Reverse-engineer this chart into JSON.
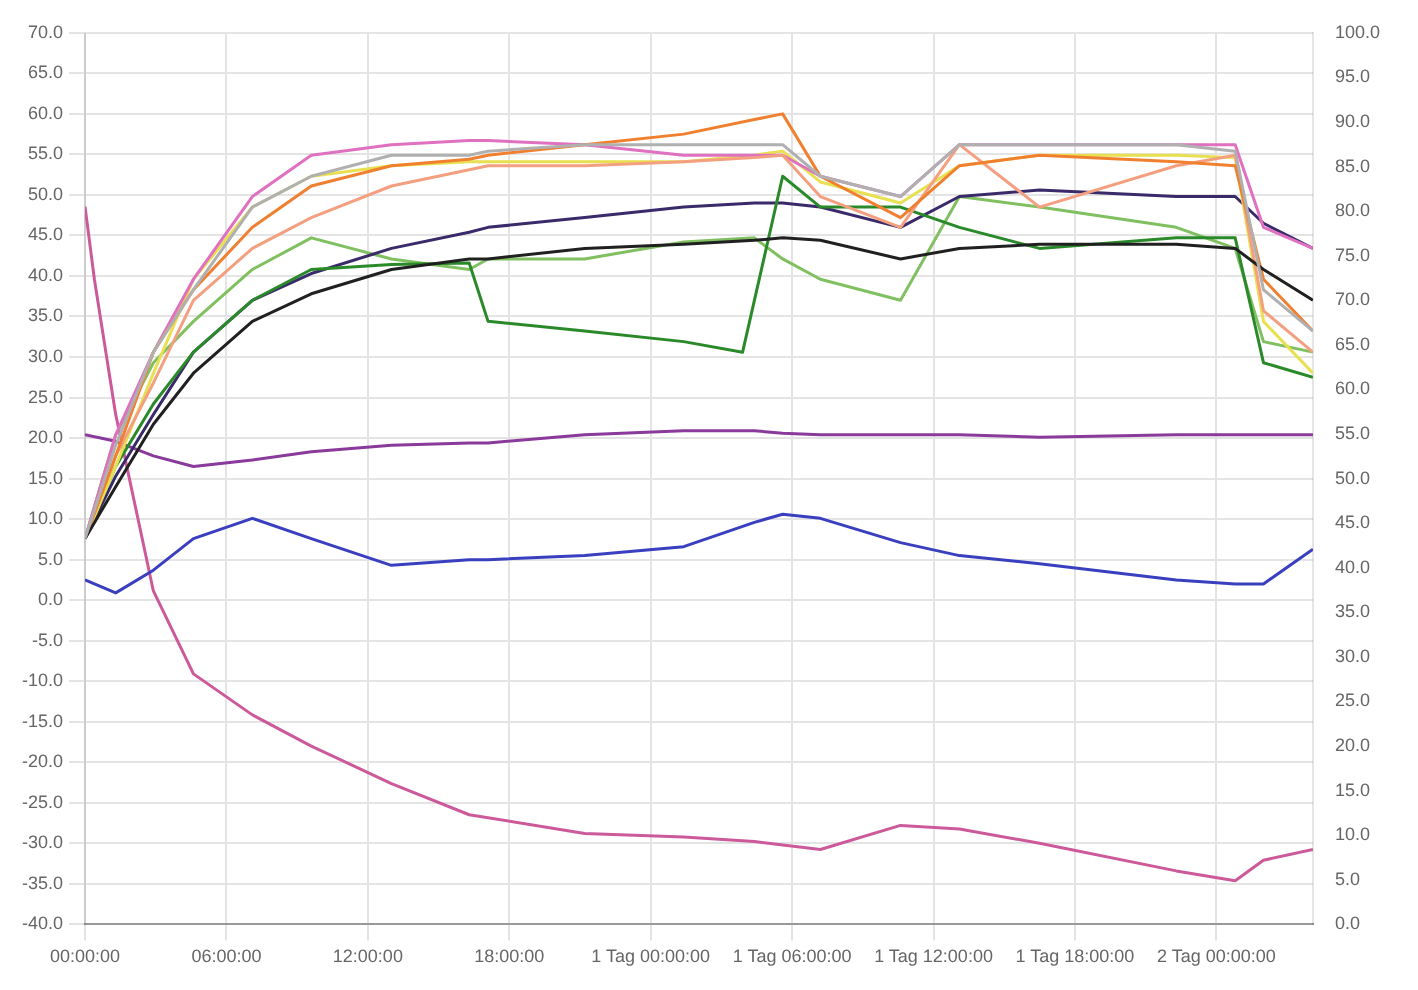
{
  "chart_data": {
    "type": "line",
    "x": [
      0,
      1.3,
      2.9,
      4.6,
      7.1,
      9.6,
      13.0,
      16.3,
      17.1,
      21.2,
      25.4,
      28.4,
      29.6,
      31.2,
      34.6,
      37.1,
      40.5,
      46.3,
      48.8,
      50.0,
      52.1
    ],
    "series": [
      {
        "color": "#3a3fc0",
        "values": [
          2.5,
          0.9,
          3.7,
          7.6,
          10.1,
          7.6,
          4.3,
          5.0,
          5.0,
          5.5,
          6.6,
          9.6,
          10.6,
          10.1,
          7.1,
          5.5,
          4.5,
          2.5,
          2.0,
          2.0,
          6.3
        ]
      },
      {
        "color": "#b0b0b0",
        "values": [
          7.6,
          19.1,
          30.6,
          38.3,
          48.5,
          52.3,
          54.9,
          54.9,
          55.4,
          56.2,
          56.2,
          56.2,
          56.2,
          52.3,
          49.8,
          56.2,
          56.2,
          56.2,
          55.4,
          38.3,
          33.2
        ]
      },
      {
        "color": "#202020",
        "values": [
          7.6,
          14.0,
          21.7,
          28.0,
          34.4,
          37.8,
          40.8,
          42.1,
          42.1,
          43.4,
          43.9,
          44.4,
          44.7,
          44.4,
          42.1,
          43.4,
          43.9,
          43.9,
          43.4,
          40.8,
          37.0
        ]
      },
      {
        "color": "#f08030",
        "values": [
          7.6,
          17.8,
          30.6,
          38.3,
          46.0,
          51.1,
          53.6,
          54.4,
          54.9,
          56.2,
          57.5,
          59.3,
          60.0,
          52.3,
          47.2,
          53.6,
          54.9,
          54.1,
          53.6,
          39.6,
          33.2
        ]
      },
      {
        "color": "#f4a080",
        "values": [
          7.6,
          17.8,
          26.8,
          37.0,
          43.4,
          47.2,
          51.1,
          53.1,
          53.6,
          53.6,
          54.1,
          54.6,
          54.9,
          49.8,
          46.0,
          56.2,
          48.5,
          53.6,
          54.9,
          35.7,
          30.6
        ]
      },
      {
        "color": "#e070c0",
        "values": [
          7.6,
          20.4,
          30.6,
          39.6,
          49.8,
          54.9,
          56.2,
          56.7,
          56.7,
          56.2,
          54.9,
          54.9,
          54.9,
          52.3,
          49.8,
          56.2,
          56.2,
          56.2,
          56.2,
          46.0,
          43.4
        ]
      },
      {
        "color": "#e8e050",
        "values": [
          7.6,
          16.5,
          28.0,
          39.6,
          48.5,
          52.3,
          53.6,
          54.1,
          54.1,
          54.1,
          54.1,
          54.9,
          55.4,
          51.6,
          49.0,
          53.6,
          54.9,
          54.9,
          54.6,
          34.4,
          28.0
        ]
      },
      {
        "color": "#2a8a2a",
        "x": [
          0,
          1.3,
          2.9,
          4.6,
          7.1,
          9.6,
          13.0,
          16.3,
          17.1,
          21.2,
          25.4,
          27.9,
          29.6,
          31.2,
          34.6,
          37.1,
          40.5,
          46.3,
          48.8,
          50.0,
          52.1
        ],
        "values": [
          7.6,
          16.5,
          24.2,
          30.6,
          37.0,
          40.8,
          41.4,
          41.6,
          34.4,
          33.2,
          31.9,
          30.6,
          52.3,
          48.5,
          48.5,
          46.0,
          43.4,
          44.7,
          44.7,
          29.3,
          27.5
        ]
      },
      {
        "color": "#3a2a6a",
        "values": [
          7.6,
          15.3,
          22.9,
          30.6,
          37.0,
          40.3,
          43.4,
          45.4,
          46.0,
          47.2,
          48.5,
          49.0,
          49.0,
          48.5,
          46.0,
          49.8,
          50.6,
          49.8,
          49.8,
          46.5,
          43.4
        ]
      },
      {
        "color": "#8a3a9a",
        "values": [
          20.4,
          19.6,
          17.8,
          16.5,
          17.3,
          18.3,
          19.1,
          19.4,
          19.4,
          20.4,
          20.9,
          20.9,
          20.6,
          20.4,
          20.4,
          20.4,
          20.1,
          20.4,
          20.4,
          20.4,
          20.4
        ]
      },
      {
        "color": "#80c060",
        "values": [
          7.6,
          20.4,
          29.3,
          34.4,
          40.8,
          44.7,
          42.1,
          40.8,
          42.1,
          42.1,
          44.2,
          44.7,
          42.1,
          39.6,
          37.0,
          49.8,
          48.5,
          46.0,
          43.4,
          31.9,
          30.6
        ]
      },
      {
        "color": "#cc5a9a",
        "axis": "y2",
        "x": [
          0,
          0.4,
          1.3,
          2.9,
          4.6,
          7.1,
          9.6,
          13.0,
          16.3,
          21.2,
          25.4,
          28.4,
          31.2,
          34.6,
          37.1,
          40.5,
          46.3,
          48.8,
          50.0,
          52.1
        ],
        "values": [
          80.5,
          72.3,
          57.2,
          37.4,
          28.1,
          23.5,
          20.0,
          15.8,
          12.3,
          10.2,
          9.8,
          9.3,
          8.4,
          11.1,
          10.7,
          9.1,
          6.0,
          4.9,
          7.2,
          8.4
        ]
      }
    ],
    "xlim": [
      0,
      52.1
    ],
    "xticks": [
      {
        "value": 0,
        "label": "00:00:00"
      },
      {
        "value": 6,
        "label": "06:00:00"
      },
      {
        "value": 12,
        "label": "12:00:00"
      },
      {
        "value": 18,
        "label": "18:00:00"
      },
      {
        "value": 24,
        "label": "1 Tag 00:00:00"
      },
      {
        "value": 30,
        "label": "1 Tag 06:00:00"
      },
      {
        "value": 36,
        "label": "1 Tag 12:00:00"
      },
      {
        "value": 42,
        "label": "1 Tag 18:00:00"
      },
      {
        "value": 48,
        "label": "2 Tag 00:00:00"
      }
    ],
    "ylim": [
      -40,
      70
    ],
    "yticks": [
      {
        "value": 70,
        "label": "70.0"
      },
      {
        "value": 65,
        "label": "65.0"
      },
      {
        "value": 60,
        "label": "60.0"
      },
      {
        "value": 55,
        "label": "55.0"
      },
      {
        "value": 50,
        "label": "50.0"
      },
      {
        "value": 45,
        "label": "45.0"
      },
      {
        "value": 40,
        "label": "40.0"
      },
      {
        "value": 35,
        "label": "35.0"
      },
      {
        "value": 30,
        "label": "30.0"
      },
      {
        "value": 25,
        "label": "25.0"
      },
      {
        "value": 20,
        "label": "20.0"
      },
      {
        "value": 15,
        "label": "15.0"
      },
      {
        "value": 10,
        "label": "10.0"
      },
      {
        "value": 5,
        "label": "5.0"
      },
      {
        "value": 0,
        "label": "0.0"
      },
      {
        "value": -5,
        "label": "-5.0"
      },
      {
        "value": -10,
        "label": "-10.0"
      },
      {
        "value": -15,
        "label": "-15.0"
      },
      {
        "value": -20,
        "label": "-20.0"
      },
      {
        "value": -25,
        "label": "-25.0"
      },
      {
        "value": -30,
        "label": "-30.0"
      },
      {
        "value": -35,
        "label": "-35.0"
      },
      {
        "value": -40,
        "label": "-40.0"
      }
    ],
    "y2lim": [
      0,
      100
    ],
    "y2ticks": [
      {
        "value": 100,
        "label": "100.0"
      },
      {
        "value": 95,
        "label": "95.0"
      },
      {
        "value": 90,
        "label": "90.0"
      },
      {
        "value": 85,
        "label": "85.0"
      },
      {
        "value": 80,
        "label": "80.0"
      },
      {
        "value": 75,
        "label": "75.0"
      },
      {
        "value": 70,
        "label": "70.0"
      },
      {
        "value": 65,
        "label": "65.0"
      },
      {
        "value": 60,
        "label": "60.0"
      },
      {
        "value": 55,
        "label": "55.0"
      },
      {
        "value": 50,
        "label": "50.0"
      },
      {
        "value": 45,
        "label": "45.0"
      },
      {
        "value": 40,
        "label": "40.0"
      },
      {
        "value": 35,
        "label": "35.0"
      },
      {
        "value": 30,
        "label": "30.0"
      },
      {
        "value": 25,
        "label": "25.0"
      },
      {
        "value": 20,
        "label": "20.0"
      },
      {
        "value": 15,
        "label": "15.0"
      },
      {
        "value": 10,
        "label": "10.0"
      },
      {
        "value": 5,
        "label": "5.0"
      },
      {
        "value": 0,
        "label": "0.0"
      }
    ],
    "grid": true,
    "marker": "none"
  }
}
